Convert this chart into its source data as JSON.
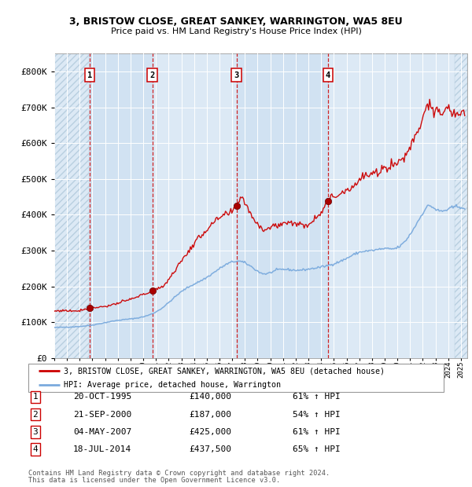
{
  "title1": "3, BRISTOW CLOSE, GREAT SANKEY, WARRINGTON, WA5 8EU",
  "title2": "Price paid vs. HM Land Registry's House Price Index (HPI)",
  "sale_dates_num": [
    1995.8,
    2000.72,
    2007.34,
    2014.54
  ],
  "sale_prices": [
    140000,
    187000,
    425000,
    437500
  ],
  "sale_labels": [
    "1",
    "2",
    "3",
    "4"
  ],
  "sale_info": [
    [
      "1",
      "20-OCT-1995",
      "£140,000",
      "61% ↑ HPI"
    ],
    [
      "2",
      "21-SEP-2000",
      "£187,000",
      "54% ↑ HPI"
    ],
    [
      "3",
      "04-MAY-2007",
      "£425,000",
      "61% ↑ HPI"
    ],
    [
      "4",
      "18-JUL-2014",
      "£437,500",
      "65% ↑ HPI"
    ]
  ],
  "legend_line1": "3, BRISTOW CLOSE, GREAT SANKEY, WARRINGTON, WA5 8EU (detached house)",
  "legend_line2": "HPI: Average price, detached house, Warrington",
  "footer1": "Contains HM Land Registry data © Crown copyright and database right 2024.",
  "footer2": "This data is licensed under the Open Government Licence v3.0.",
  "red_line_color": "#cc0000",
  "blue_line_color": "#7aaadd",
  "bg_color": "#dce9f5",
  "vline_color": "#cc0000",
  "grid_color": "#ffffff",
  "ylim": [
    0,
    850000
  ],
  "xlim_start": 1993.0,
  "xlim_end": 2025.5,
  "hatch_end": 1995.75,
  "hatch_start_right": 2024.5
}
